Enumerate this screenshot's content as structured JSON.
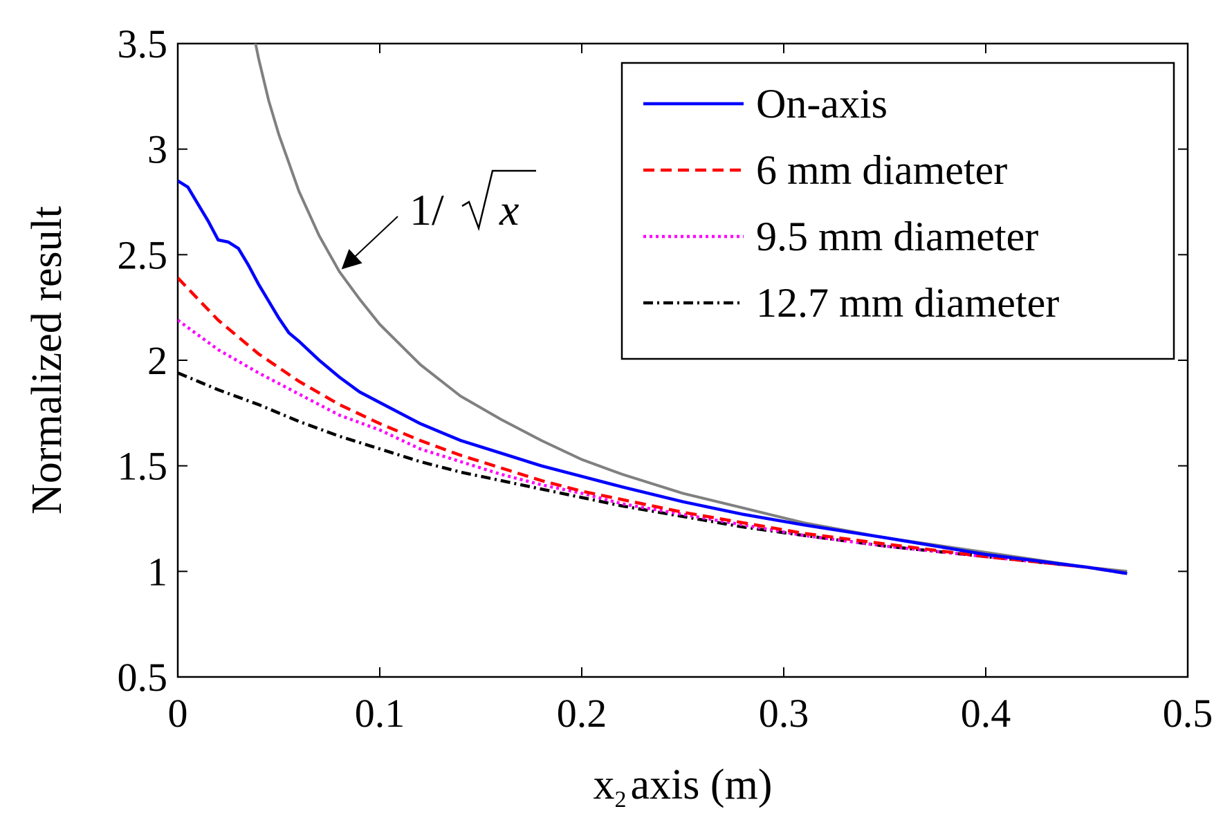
{
  "chart_data": {
    "type": "line",
    "xlabel": "x",
    "xlabel_sub": "2",
    "xlabel_rest": "axis (m)",
    "ylabel": "Normalized result",
    "xlim": [
      0,
      0.5
    ],
    "ylim": [
      0.5,
      3.5
    ],
    "x_ticks": [
      0,
      0.1,
      0.2,
      0.3,
      0.4,
      0.5
    ],
    "x_tick_labels": [
      "0",
      "0.1",
      "0.2",
      "0.3",
      "0.4",
      "0.5"
    ],
    "y_ticks": [
      0.5,
      1,
      1.5,
      2,
      2.5,
      3,
      3.5
    ],
    "y_tick_labels": [
      "0.5",
      "1",
      "1.5",
      "2",
      "2.5",
      "3",
      "3.5"
    ],
    "grid": false,
    "legend_position": "top-right",
    "annotation": {
      "text_prefix": "1/",
      "text_radicand": "x",
      "points_to": [
        0.08,
        2.42
      ]
    },
    "series": [
      {
        "name": "On-axis",
        "color": "#0000ff",
        "dash": "solid",
        "x": [
          0,
          0.005,
          0.01,
          0.015,
          0.02,
          0.025,
          0.03,
          0.035,
          0.04,
          0.045,
          0.05,
          0.055,
          0.06,
          0.07,
          0.08,
          0.09,
          0.1,
          0.12,
          0.14,
          0.16,
          0.18,
          0.2,
          0.22,
          0.25,
          0.28,
          0.31,
          0.35,
          0.4,
          0.45,
          0.47
        ],
        "y": [
          2.85,
          2.82,
          2.74,
          2.66,
          2.57,
          2.56,
          2.53,
          2.45,
          2.36,
          2.28,
          2.2,
          2.13,
          2.09,
          2.0,
          1.92,
          1.85,
          1.8,
          1.7,
          1.62,
          1.56,
          1.5,
          1.45,
          1.4,
          1.33,
          1.27,
          1.22,
          1.16,
          1.08,
          1.02,
          0.99
        ]
      },
      {
        "name": "6 mm diameter",
        "color": "#ff0000",
        "dash": "dashed",
        "x": [
          0,
          0.02,
          0.04,
          0.06,
          0.08,
          0.1,
          0.12,
          0.14,
          0.16,
          0.18,
          0.2,
          0.22,
          0.25,
          0.28,
          0.31,
          0.35,
          0.4,
          0.45,
          0.47
        ],
        "y": [
          2.39,
          2.19,
          2.03,
          1.9,
          1.79,
          1.7,
          1.62,
          1.55,
          1.49,
          1.43,
          1.38,
          1.34,
          1.28,
          1.23,
          1.18,
          1.13,
          1.07,
          1.02,
          0.99
        ]
      },
      {
        "name": "9.5 mm diameter",
        "color": "#ff00ff",
        "dash": "dotted",
        "x": [
          0,
          0.02,
          0.04,
          0.06,
          0.08,
          0.1,
          0.12,
          0.14,
          0.16,
          0.18,
          0.2,
          0.22,
          0.25,
          0.28,
          0.31,
          0.35,
          0.4,
          0.45,
          0.47
        ],
        "y": [
          2.19,
          2.05,
          1.94,
          1.84,
          1.74,
          1.67,
          1.58,
          1.52,
          1.46,
          1.41,
          1.37,
          1.32,
          1.27,
          1.22,
          1.17,
          1.12,
          1.07,
          1.02,
          0.99
        ]
      },
      {
        "name": "12.7 mm diameter",
        "color": "#000000",
        "dash": "dashdot",
        "x": [
          0,
          0.02,
          0.04,
          0.06,
          0.08,
          0.1,
          0.12,
          0.14,
          0.16,
          0.18,
          0.2,
          0.22,
          0.25,
          0.28,
          0.31,
          0.35,
          0.4,
          0.45,
          0.47
        ],
        "y": [
          1.94,
          1.86,
          1.79,
          1.71,
          1.64,
          1.58,
          1.52,
          1.47,
          1.43,
          1.39,
          1.35,
          1.31,
          1.26,
          1.21,
          1.17,
          1.12,
          1.07,
          1.02,
          0.99
        ]
      },
      {
        "color": "#808080",
        "dash": "solid",
        "x": [
          0.0355,
          0.04,
          0.045,
          0.05,
          0.06,
          0.07,
          0.08,
          0.09,
          0.1,
          0.12,
          0.14,
          0.16,
          0.18,
          0.2,
          0.22,
          0.25,
          0.28,
          0.31,
          0.35,
          0.4,
          0.45,
          0.47
        ],
        "y": [
          3.64,
          3.43,
          3.23,
          3.07,
          2.8,
          2.59,
          2.42,
          2.29,
          2.17,
          1.98,
          1.83,
          1.72,
          1.62,
          1.53,
          1.46,
          1.37,
          1.3,
          1.23,
          1.16,
          1.09,
          1.02,
          1.0
        ]
      }
    ]
  }
}
